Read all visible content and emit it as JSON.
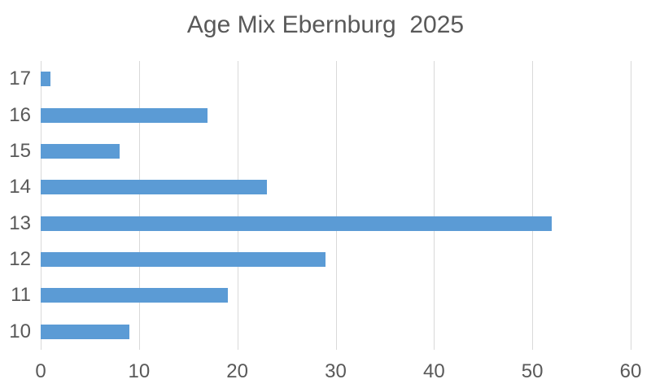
{
  "chart_data": {
    "type": "bar",
    "orientation": "horizontal",
    "title": "Age Mix Ebernburg  2025",
    "categories_top_to_bottom": [
      "17",
      "16",
      "15",
      "14",
      "13",
      "12",
      "11",
      "10"
    ],
    "values": [
      1,
      17,
      8,
      23,
      52,
      29,
      19,
      9
    ],
    "xlabel": "",
    "ylabel": "",
    "xlim": [
      0,
      60
    ],
    "xticks": [
      0,
      10,
      20,
      30,
      40,
      50,
      60
    ],
    "grid": "vertical-only",
    "legend": "none",
    "colors": {
      "bar": "#5b9bd5",
      "label_text": "#595959",
      "title_text": "#595959",
      "gridline": "#d9d9d9",
      "background": "#ffffff"
    }
  }
}
